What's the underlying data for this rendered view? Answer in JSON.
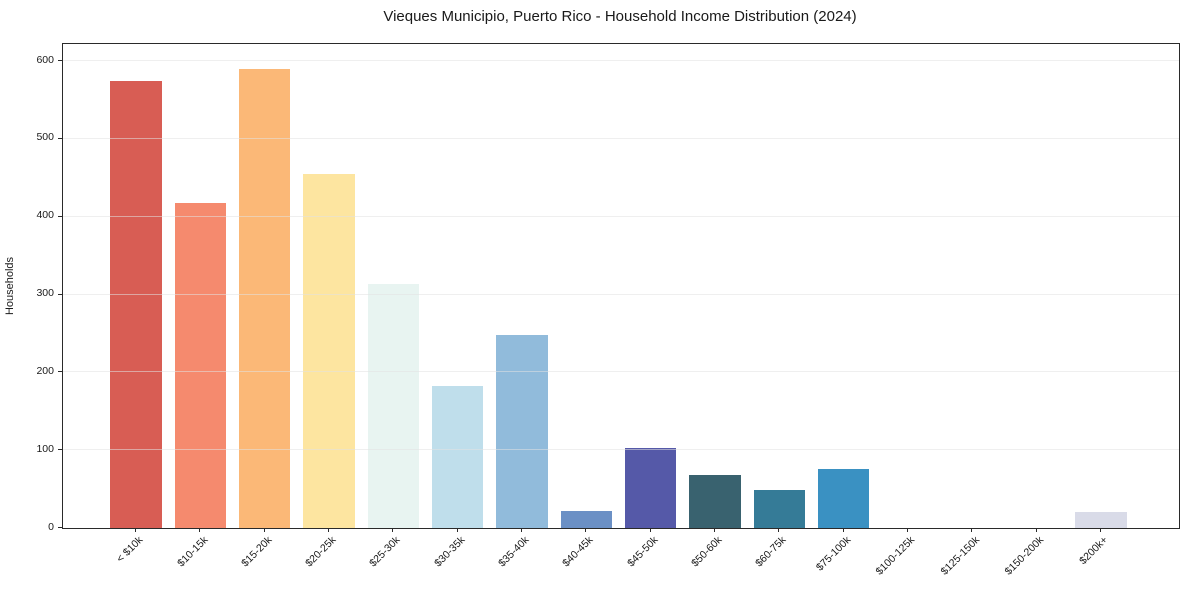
{
  "figure": {
    "background": "#ffffff",
    "spine_color": "#2a2a2a",
    "grid_color": "#e1e1e1",
    "text_color": "#1a1a1a"
  },
  "chart_data": {
    "type": "bar",
    "title": "Vieques Municipio, Puerto Rico - Household Income Distribution (2024)",
    "xlabel": "",
    "ylabel": "Households",
    "categories": [
      "< $10k",
      "$10-15k",
      "$15-20k",
      "$20-25k",
      "$25-30k",
      "$30-35k",
      "$35-40k",
      "$40-45k",
      "$45-50k",
      "$50-60k",
      "$60-75k",
      "$75-100k",
      "$100-125k",
      "$125-150k",
      "$150-200k",
      "$200k+"
    ],
    "values": [
      575,
      418,
      590,
      455,
      313,
      182,
      248,
      22,
      103,
      68,
      49,
      76,
      0,
      0,
      0,
      21
    ],
    "bar_colors": [
      "#d85d54",
      "#f58a6e",
      "#fbb877",
      "#fde5a0",
      "#e8f4f1",
      "#bfdeeb",
      "#91bbdb",
      "#6b90c5",
      "#5559a8",
      "#39626f",
      "#357b97",
      "#3a91c2",
      "#4fa3ce",
      "#69b5d8",
      "#8ecbe2",
      "#d9dbe8"
    ],
    "ylim": [
      0,
      622
    ],
    "yticks": [
      0,
      100,
      200,
      300,
      400,
      500,
      600
    ],
    "grid": "horizontal-on-top-of-bars",
    "legend": "none",
    "x_tick_label_rotation_deg": 45
  }
}
